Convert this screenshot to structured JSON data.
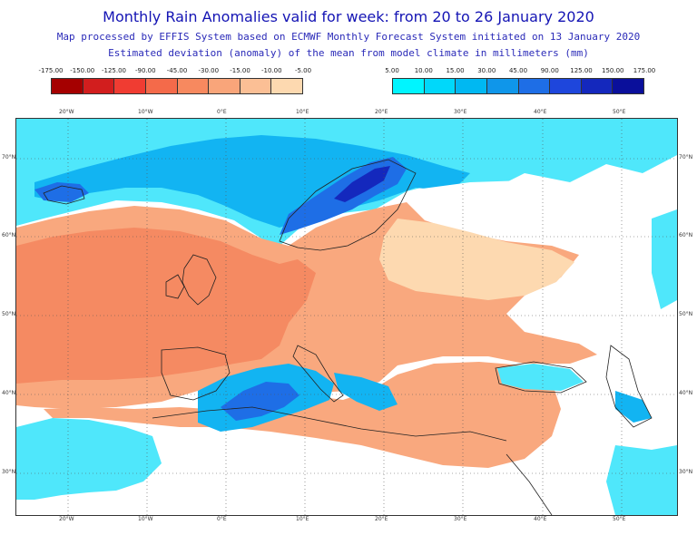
{
  "header": {
    "title": "Monthly Rain Anomalies valid for week: from 20 to 26 January 2020",
    "subtitle1": "Map processed by EFFIS System based on ECMWF Monthly Forecast System initiated on 13 January 2020",
    "subtitle2": "Estimated deviation (anomaly) of the mean from model climate in millimeters (mm)"
  },
  "legend_negative": {
    "labels": [
      "-175.00",
      "-150.00",
      "-125.00",
      "-90.00",
      "-45.00",
      "-30.00",
      "-15.00",
      "-10.00",
      "-5.00"
    ],
    "colors": [
      "#a50000",
      "#d21e1e",
      "#f03c32",
      "#f46a4a",
      "#f7895f",
      "#f9a57a",
      "#fbbf95",
      "#fdd9b0"
    ]
  },
  "legend_positive": {
    "labels": [
      "5.00",
      "10.00",
      "15.00",
      "30.00",
      "45.00",
      "90.00",
      "125.00",
      "150.00",
      "175.00"
    ],
    "colors": [
      "#00f5ff",
      "#00d8fa",
      "#00b8f2",
      "#0f96ea",
      "#1e6ee6",
      "#1e46dc",
      "#1428bd",
      "#0a0f9b"
    ]
  },
  "map": {
    "lon_labels": [
      "20°W",
      "10°W",
      "0°E",
      "10°E",
      "20°E",
      "30°E",
      "40°E",
      "50°E"
    ],
    "lat_labels": [
      "70°N",
      "60°N",
      "50°N",
      "40°N",
      "30°N"
    ],
    "colors": {
      "strong_dry": "#f58a62",
      "dry": "#f9a87e",
      "light_dry": "#fdd9b0",
      "light_wet": "#4fe7fb",
      "wet": "#12b4f2",
      "very_wet": "#1e6ee6",
      "extreme_wet": "#1428bd",
      "coast": "#222222",
      "grid": "#555555"
    }
  }
}
